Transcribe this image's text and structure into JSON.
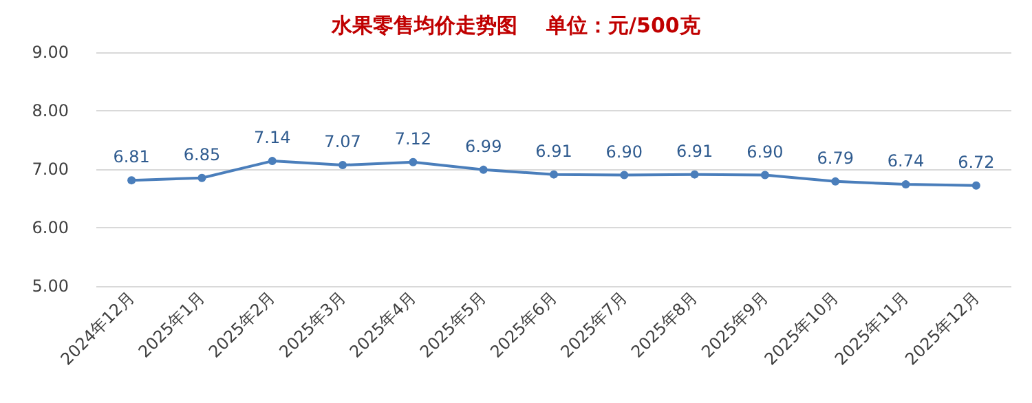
{
  "chart_data": {
    "type": "line",
    "title": "水果零售均价走势图    单位：元/500克",
    "categories": [
      "2024年12月",
      "2025年1月",
      "2025年2月",
      "2025年3月",
      "2025年4月",
      "2025年5月",
      "2025年6月",
      "2025年7月",
      "2025年8月",
      "2025年9月",
      "2025年10月",
      "2025年11月",
      "2025年12月"
    ],
    "series": [
      {
        "color": "#4a7ebb",
        "values": [
          6.81,
          6.85,
          7.14,
          7.07,
          7.12,
          6.99,
          6.91,
          6.9,
          6.91,
          6.9,
          6.79,
          6.74,
          6.72
        ],
        "value_labels": [
          "6.81",
          "6.85",
          "7.14",
          "7.07",
          "7.12",
          "6.99",
          "6.91",
          "6.90",
          "6.91",
          "6.90",
          "6.79",
          "6.74",
          "6.72"
        ]
      }
    ],
    "ylim": [
      5,
      9
    ],
    "yticks": [
      {
        "value": 5,
        "label": "5.00"
      },
      {
        "value": 6,
        "label": "6.00"
      },
      {
        "value": 7,
        "label": "7.00"
      },
      {
        "value": 8,
        "label": "8.00"
      },
      {
        "value": 9,
        "label": "9.00"
      }
    ],
    "grid": "y",
    "marker": "circle",
    "line_style": "solid"
  }
}
